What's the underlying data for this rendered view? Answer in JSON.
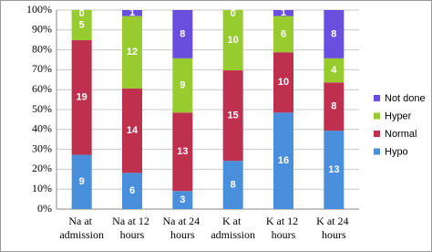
{
  "chart_data": {
    "type": "bar",
    "stacking": "percent",
    "categories": [
      "Na at admission",
      "Na at 12 hours",
      "Na at 24 hours",
      "K at admission",
      "K at 12 hours",
      "K at 24 hours"
    ],
    "series": [
      {
        "name": "Hypo",
        "color": "#4a8fdc",
        "values": [
          9,
          6,
          3,
          8,
          16,
          13
        ]
      },
      {
        "name": "Normal",
        "color": "#bf2f4e",
        "values": [
          19,
          14,
          13,
          15,
          10,
          8
        ]
      },
      {
        "name": "Hyper",
        "color": "#98cc2e",
        "values": [
          5,
          12,
          9,
          10,
          6,
          4
        ]
      },
      {
        "name": "Not done",
        "color": "#6a4fde",
        "values": [
          0,
          1,
          8,
          0,
          1,
          8
        ]
      }
    ],
    "ylim": [
      0,
      100
    ],
    "yticks": [
      {
        "value": 0,
        "label": "0%"
      },
      {
        "value": 10,
        "label": "10%"
      },
      {
        "value": 20,
        "label": "20%"
      },
      {
        "value": 30,
        "label": "30%"
      },
      {
        "value": 40,
        "label": "40%"
      },
      {
        "value": 50,
        "label": "50%"
      },
      {
        "value": 60,
        "label": "60%"
      },
      {
        "value": 70,
        "label": "70%"
      },
      {
        "value": 80,
        "label": "80%"
      },
      {
        "value": 90,
        "label": "90%"
      },
      {
        "value": 100,
        "label": "100%"
      }
    ],
    "grid": true,
    "legend": "right"
  }
}
